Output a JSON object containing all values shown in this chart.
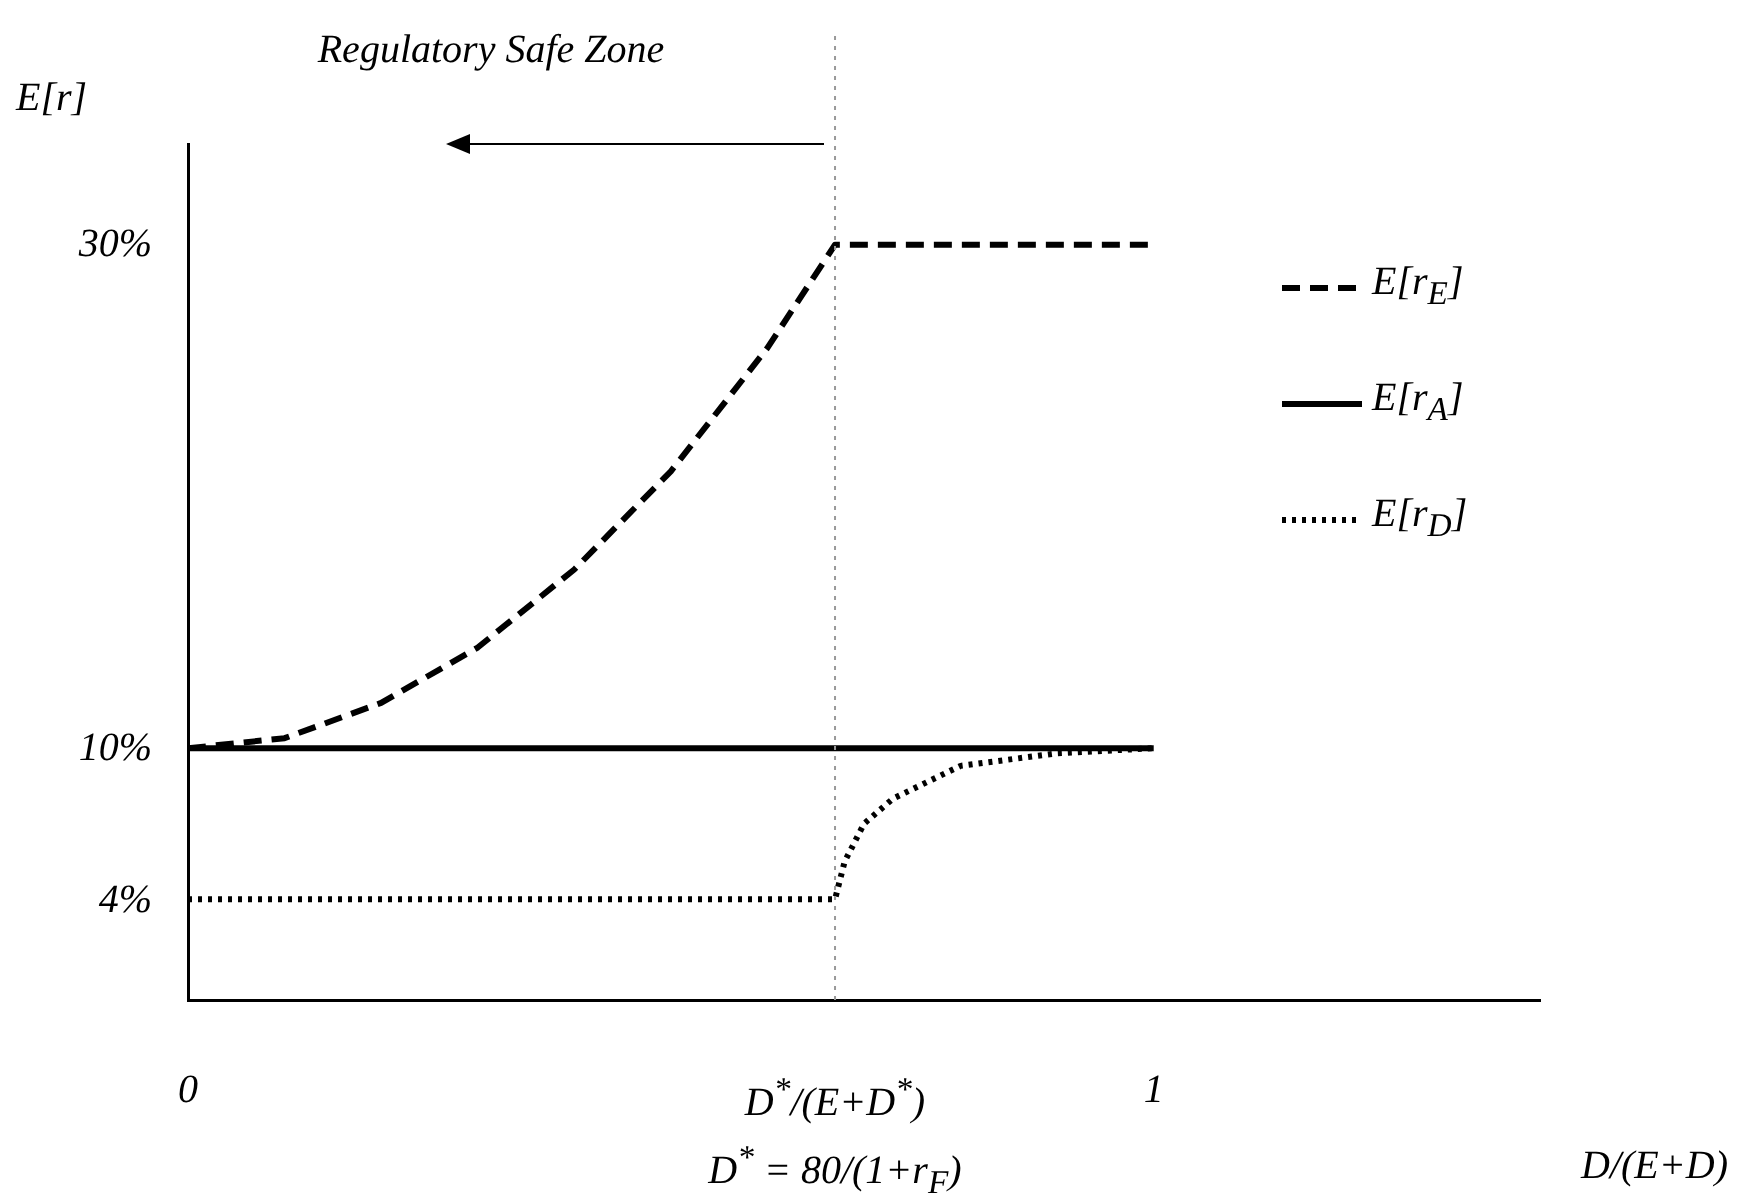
{
  "chart_data": {
    "type": "line",
    "ylabel": "E[r]",
    "xlabel": "D/(E+D)",
    "xlim": [
      0,
      1.4
    ],
    "ylim": [
      0,
      34
    ],
    "xticks": [
      0,
      {
        "value": 0.67,
        "label": "D$^{*}$/(E+D$^{*}$)"
      },
      1
    ],
    "yticks": [
      {
        "value": 4,
        "label": "4%"
      },
      {
        "value": 10,
        "label": "10%"
      },
      {
        "value": 30,
        "label": "30%"
      }
    ],
    "series": [
      {
        "name": "E[r$_{E}$]",
        "color": "#000000",
        "line_style": "dashed",
        "x": [
          0,
          0.1,
          0.2,
          0.3,
          0.4,
          0.5,
          0.6,
          0.67,
          1
        ],
        "values": [
          10,
          10.4,
          11.8,
          14,
          17.1,
          21,
          25.9,
          30,
          30
        ]
      },
      {
        "name": "E[r$_{A}$]",
        "color": "#000000",
        "line_style": "solid",
        "x": [
          0,
          1
        ],
        "values": [
          10,
          10
        ]
      },
      {
        "name": "E[r$_{D}$]",
        "color": "#000000",
        "line_style": "dotted",
        "x": [
          0,
          0.67,
          0.68,
          0.7,
          0.73,
          0.8,
          0.9,
          1
        ],
        "values": [
          4,
          4,
          5.5,
          7,
          8,
          9.3,
          9.8,
          10
        ]
      }
    ],
    "ref_lines": [
      {
        "axis": "x",
        "value": 0.67,
        "color": "#999999",
        "line_style": "dotted"
      }
    ],
    "annotations": [
      "Regulatory Safe Zone",
      "D$^{*}$ = 80/(1+r$_{F}$)"
    ],
    "grid": false,
    "legend": "top right",
    "marker": "none"
  }
}
